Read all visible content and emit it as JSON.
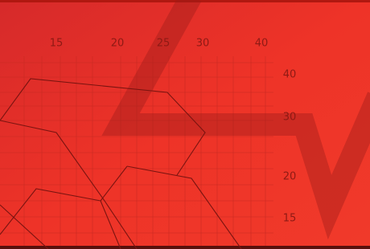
{
  "top_scale": [
    "15",
    "20",
    "25",
    "30",
    "40"
  ],
  "side_scale": [
    "40",
    "30",
    "20",
    "15"
  ]
}
